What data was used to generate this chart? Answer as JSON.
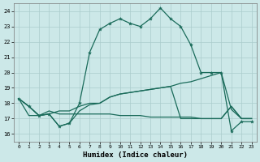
{
  "xlabel": "Humidex (Indice chaleur)",
  "xlim": [
    -0.5,
    23.5
  ],
  "ylim": [
    15.5,
    24.5
  ],
  "yticks": [
    16,
    17,
    18,
    19,
    20,
    21,
    22,
    23,
    24
  ],
  "xticks": [
    0,
    1,
    2,
    3,
    4,
    5,
    6,
    7,
    8,
    9,
    10,
    11,
    12,
    13,
    14,
    15,
    16,
    17,
    18,
    19,
    20,
    21,
    22,
    23
  ],
  "bg_color": "#cce8e8",
  "grid_color": "#aacccc",
  "line_color": "#1a6b5a",
  "line1_y": [
    18.3,
    17.8,
    17.2,
    17.3,
    16.5,
    16.7,
    18.0,
    21.3,
    22.8,
    23.2,
    23.5,
    23.2,
    23.0,
    23.5,
    24.2,
    23.5,
    23.0,
    21.8,
    20.0,
    20.0,
    20.0,
    16.2,
    16.8,
    16.8
  ],
  "line2_y": [
    18.3,
    17.8,
    17.2,
    17.3,
    17.5,
    17.5,
    17.8,
    18.0,
    18.0,
    18.4,
    18.6,
    18.7,
    18.8,
    18.9,
    19.0,
    19.1,
    19.3,
    19.4,
    19.6,
    19.8,
    20.0,
    17.6,
    17.0,
    17.0
  ],
  "line3_y": [
    18.3,
    17.2,
    17.2,
    17.5,
    17.3,
    17.3,
    17.3,
    17.3,
    17.3,
    17.3,
    17.2,
    17.2,
    17.2,
    17.1,
    17.1,
    17.1,
    17.1,
    17.1,
    17.0,
    17.0,
    17.0,
    17.8,
    17.0,
    17.0
  ],
  "line4_y": [
    18.3,
    17.8,
    17.2,
    17.3,
    16.5,
    16.7,
    17.5,
    17.9,
    18.0,
    18.4,
    18.6,
    18.7,
    18.8,
    18.9,
    19.0,
    19.1,
    17.0,
    17.0,
    17.0,
    17.0,
    17.0,
    17.8,
    17.0,
    17.0
  ]
}
